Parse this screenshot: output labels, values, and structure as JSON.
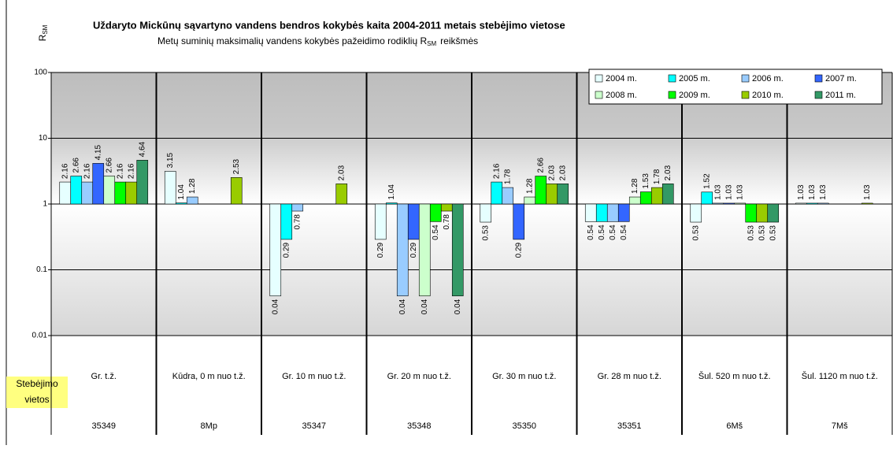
{
  "chart_data": {
    "type": "bar",
    "log_scale": true,
    "baseline": 1,
    "title": "Uždaryto Mickūnų sąvartyno vandens bendros kokybės kaita 2004-2011 metais stebėjimo vietose",
    "subtitle": "Metų suminių maksimalių vandens kokybės pažeidimo rodiklių R",
    "subtitle_subscript": "SM",
    "subtitle_end": "reikšmės",
    "y_label": "R",
    "y_label_subscript": "SM",
    "category_axis_label": [
      "Stebėjimo",
      "vietos"
    ],
    "categories": [
      "Gr. t.ž.",
      "Kūdra, 0 m nuo t.ž.",
      "Gr. 10 m nuo t.ž.",
      "Gr. 20 m nuo t.ž.",
      "Gr. 30 m nuo t.ž.",
      "Gr. 28 m nuo t.ž.",
      "Šul. 520 m nuo t.ž.",
      "Šul. 1120 m nuo t.ž."
    ],
    "codes": [
      "35349",
      "8Mp",
      "35347",
      "35348",
      "35350",
      "35351",
      "6Mš",
      "7Mš"
    ],
    "ylim": [
      0.01,
      100
    ],
    "yticks": [
      0.01,
      0.1,
      1,
      10,
      100
    ],
    "grid": true,
    "legend": "top-right",
    "series": [
      {
        "name": "2004 m.",
        "color": "#e6ffff",
        "values": [
          2.16,
          3.15,
          0.04,
          0.29,
          0.53,
          0.54,
          0.53,
          1.03
        ]
      },
      {
        "name": "2005 m.",
        "color": "#00ffff",
        "values": [
          2.66,
          1.04,
          0.29,
          1.04,
          2.16,
          0.54,
          1.52,
          1.03
        ]
      },
      {
        "name": "2006 m.",
        "color": "#99ccff",
        "values": [
          2.16,
          1.28,
          0.78,
          0.04,
          1.78,
          0.54,
          1.03,
          1.03
        ]
      },
      {
        "name": "2007 m.",
        "color": "#3366ff",
        "values": [
          4.15,
          null,
          null,
          0.29,
          0.29,
          0.54,
          1.03,
          null
        ]
      },
      {
        "name": "2008 m.",
        "color": "#ccffcc",
        "values": [
          2.66,
          null,
          null,
          0.04,
          1.28,
          1.28,
          1.03,
          null
        ]
      },
      {
        "name": "2009 m.",
        "color": "#00ff00",
        "values": [
          2.16,
          null,
          null,
          0.54,
          2.66,
          1.53,
          0.53,
          null
        ]
      },
      {
        "name": "2010 m.",
        "color": "#99cc00",
        "values": [
          2.16,
          2.53,
          2.03,
          0.78,
          2.03,
          1.78,
          0.53,
          1.03
        ]
      },
      {
        "name": "2011 m.",
        "color": "#339966",
        "values": [
          4.64,
          null,
          null,
          0.04,
          2.03,
          2.03,
          0.53,
          null
        ]
      }
    ]
  }
}
